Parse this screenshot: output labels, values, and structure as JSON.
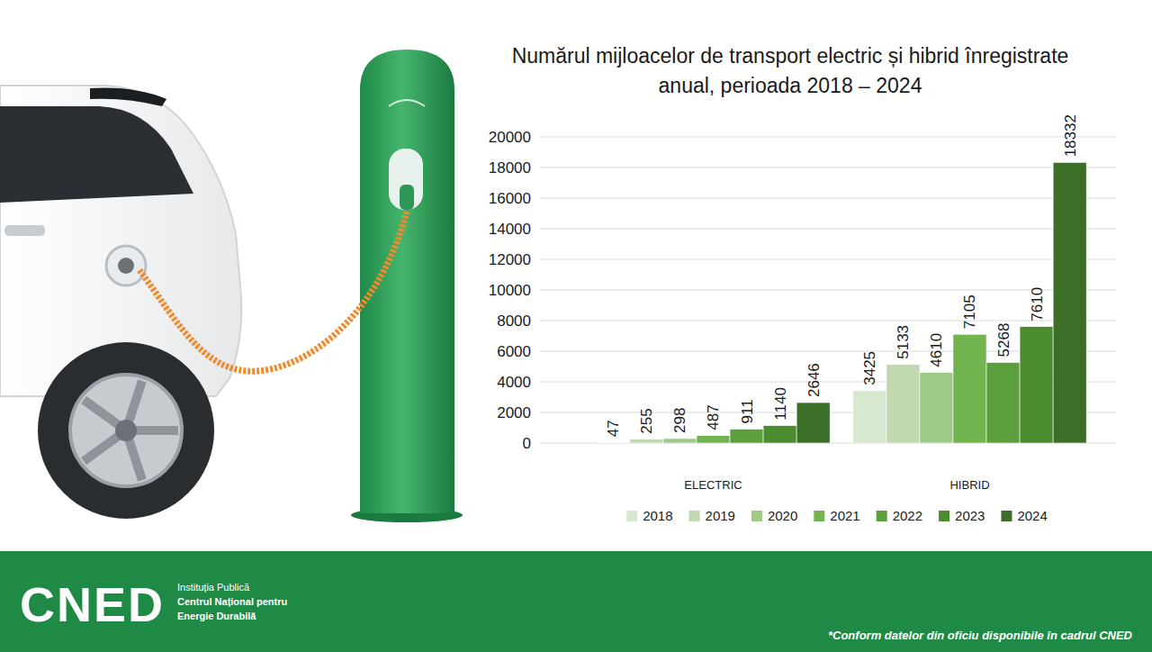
{
  "chart_data": {
    "type": "bar",
    "title": "Numărul mijloacelor de transport electric și hibrid înregistrate anual, perioada 2018 – 2024",
    "categories": [
      "ELECTRIC",
      "HIBRID"
    ],
    "series": [
      {
        "name": "2018",
        "color": "#d8e8ce",
        "values": [
          47,
          3425
        ]
      },
      {
        "name": "2019",
        "color": "#c0d9b1",
        "values": [
          255,
          5133
        ]
      },
      {
        "name": "2020",
        "color": "#9fc986",
        "values": [
          298,
          4610
        ]
      },
      {
        "name": "2021",
        "color": "#72b450",
        "values": [
          487,
          7105
        ]
      },
      {
        "name": "2022",
        "color": "#5c9f3d",
        "values": [
          911,
          5268
        ]
      },
      {
        "name": "2023",
        "color": "#4b8c31",
        "values": [
          1140,
          7610
        ]
      },
      {
        "name": "2024",
        "color": "#3b6f27",
        "values": [
          2646,
          18332
        ]
      }
    ],
    "ylim": [
      0,
      20000
    ],
    "yticks": [
      0,
      2000,
      4000,
      6000,
      8000,
      10000,
      12000,
      14000,
      16000,
      18000,
      20000
    ],
    "grid": true,
    "data_labels": true,
    "legend": "bottom"
  },
  "footer": {
    "logo": "CNED",
    "organization": [
      "Instituția Publică",
      "Centrul Național pentru",
      "Energie Durabilă"
    ],
    "note": "*Conform datelor din oficiu disponibile în cadrul CNED"
  }
}
